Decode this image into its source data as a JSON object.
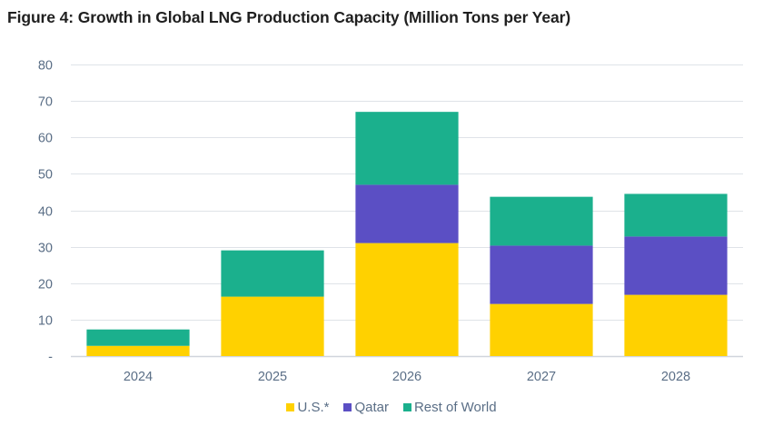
{
  "chart_data": {
    "type": "bar",
    "stacked": true,
    "title": "Figure 4: Growth in Global LNG Production Capacity (Million Tons per Year)",
    "xlabel": "",
    "ylabel": "",
    "categories": [
      "2024",
      "2025",
      "2026",
      "2027",
      "2028"
    ],
    "series": [
      {
        "name": "U.S.*",
        "color": "#FFD100",
        "values": [
          2.8,
          16.3,
          31,
          14.3,
          16.8
        ]
      },
      {
        "name": "Qatar",
        "color": "#5B4FC4",
        "values": [
          0,
          0,
          16,
          16,
          16
        ]
      },
      {
        "name": "Rest of World",
        "color": "#1BB08D",
        "values": [
          4.5,
          12.7,
          20,
          13.4,
          11.7
        ]
      }
    ],
    "ylim": [
      0,
      80
    ],
    "yticks": [
      0,
      10,
      20,
      30,
      40,
      50,
      60,
      70,
      80
    ],
    "ytick_labels": [
      "-",
      "10",
      "20",
      "30",
      "40",
      "50",
      "60",
      "70",
      "80"
    ],
    "grid": true,
    "legend_position": "bottom-center"
  }
}
